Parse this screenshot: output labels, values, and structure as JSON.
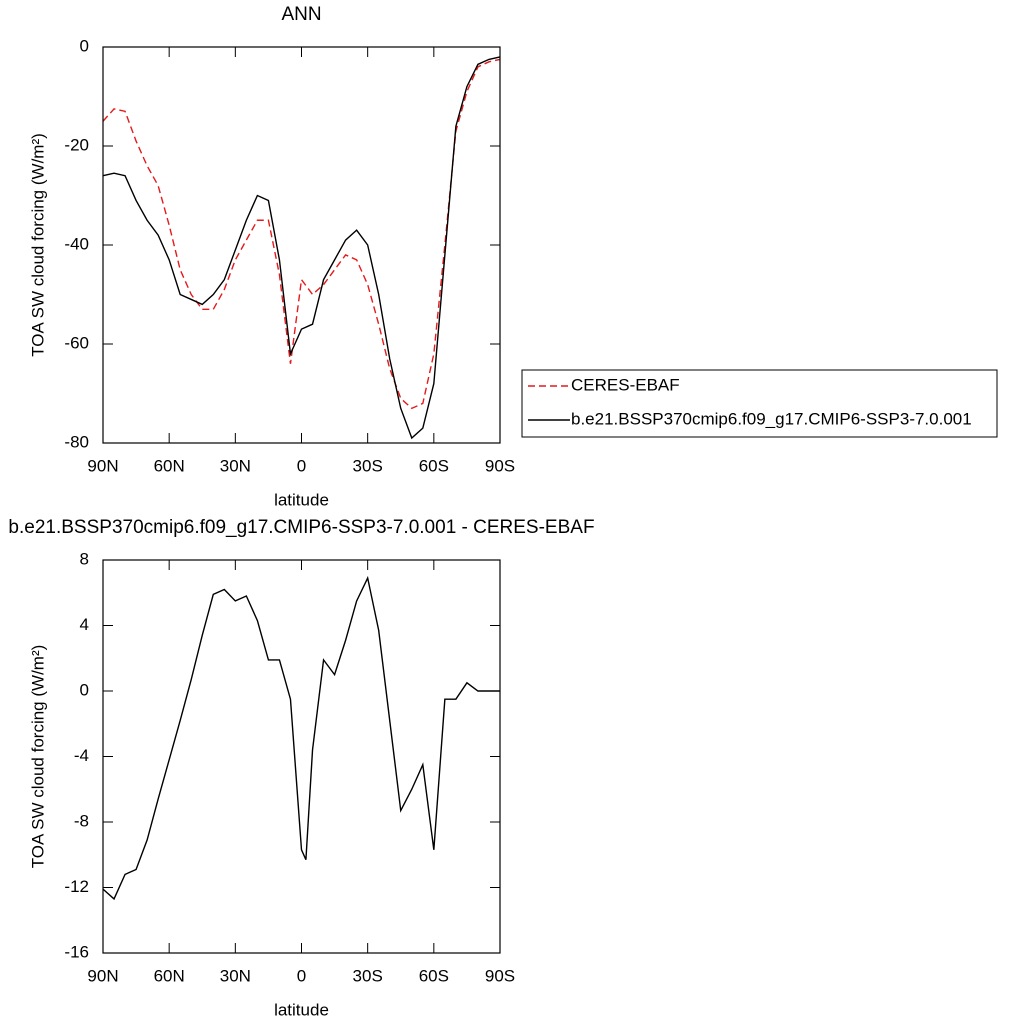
{
  "chart_data": [
    {
      "type": "line",
      "title": "ANN",
      "xlabel": "latitude",
      "ylabel": "TOA SW cloud forcing (W/m²)",
      "x": [
        90,
        85,
        80,
        75,
        70,
        65,
        60,
        55,
        50,
        45,
        40,
        35,
        30,
        25,
        20,
        15,
        10,
        5,
        0,
        -5,
        -10,
        -15,
        -20,
        -25,
        -30,
        -35,
        -40,
        -45,
        -50,
        -55,
        -60,
        -65,
        -70,
        -75,
        -80,
        -85,
        -90
      ],
      "xlim": [
        90,
        -90
      ],
      "xticks": [
        {
          "value": 90,
          "label": "90N"
        },
        {
          "value": 60,
          "label": "60N"
        },
        {
          "value": 30,
          "label": "30N"
        },
        0,
        {
          "value": -30,
          "label": "30S"
        },
        {
          "value": -60,
          "label": "60S"
        },
        {
          "value": -90,
          "label": "90S"
        }
      ],
      "ylim": [
        -80,
        0
      ],
      "yticks": [
        -80,
        -60,
        -40,
        -20,
        0
      ],
      "legend": "right",
      "series": [
        {
          "name": "CERES-EBAF",
          "color": "#e41a1c",
          "line_style": "dashed",
          "values": [
            -15,
            -12.5,
            -13,
            -19,
            -24,
            -28,
            -36,
            -45,
            -50,
            -53,
            -53,
            -49,
            -43,
            -39,
            -35,
            -35,
            -46,
            -64,
            -47,
            -50,
            -48,
            -45,
            -42,
            -43,
            -48,
            -56,
            -65,
            -71,
            -73,
            -72,
            -62,
            -40,
            -17,
            -9,
            -4,
            -3,
            -2.5
          ]
        },
        {
          "name": "b.e21.BSSP370cmip6.f09_g17.CMIP6-SSP3-7.0.001",
          "color": "#000000",
          "line_style": "solid",
          "values": [
            -26,
            -25.5,
            -26,
            -31,
            -35,
            -38,
            -43,
            -50,
            -51,
            -52,
            -50,
            -47,
            -41,
            -35,
            -30,
            -31,
            -43,
            -62,
            -57,
            -56,
            -47,
            -43,
            -39,
            -37,
            -40,
            -50,
            -63,
            -73,
            -79,
            -77,
            -68,
            -42,
            -16,
            -8,
            -3.5,
            -2.5,
            -2
          ]
        }
      ]
    },
    {
      "type": "line",
      "title": "b.e21.BSSP370cmip6.f09_g17.CMIP6-SSP3-7.0.001 - CERES-EBAF",
      "xlabel": "latitude",
      "ylabel": "TOA SW cloud forcing (W/m²)",
      "x": [
        90,
        85,
        80,
        75,
        70,
        65,
        60,
        55,
        50,
        45,
        40,
        35,
        30,
        25,
        20,
        15,
        10,
        5,
        0,
        -2,
        -5,
        -10,
        -15,
        -20,
        -25,
        -30,
        -35,
        -40,
        -45,
        -50,
        -55,
        -60,
        -65,
        -70,
        -75,
        -80,
        -85,
        -90
      ],
      "xlim": [
        90,
        -90
      ],
      "xticks": [
        {
          "value": 90,
          "label": "90N"
        },
        {
          "value": 60,
          "label": "60N"
        },
        {
          "value": 30,
          "label": "30N"
        },
        0,
        {
          "value": -30,
          "label": "30S"
        },
        {
          "value": -60,
          "label": "60S"
        },
        {
          "value": -90,
          "label": "90S"
        }
      ],
      "ylim": [
        -16,
        8
      ],
      "yticks": [
        -16,
        -12,
        -8,
        -4,
        0,
        4,
        8
      ],
      "color": "#000000",
      "line_style": "solid",
      "values": [
        -12.1,
        -12.7,
        -11.2,
        -10.9,
        -9.1,
        -6.6,
        -4.2,
        -1.8,
        0.7,
        3.4,
        5.9,
        6.2,
        5.5,
        5.8,
        4.3,
        1.9,
        1.9,
        -0.5,
        -9.7,
        -10.3,
        -3.6,
        1.9,
        1,
        3.1,
        5.5,
        6.9,
        3.7,
        -1.8,
        -7.3,
        -6,
        -4.5,
        -9.7,
        -0.5,
        -0.5,
        0.5,
        0,
        0,
        0
      ]
    }
  ]
}
